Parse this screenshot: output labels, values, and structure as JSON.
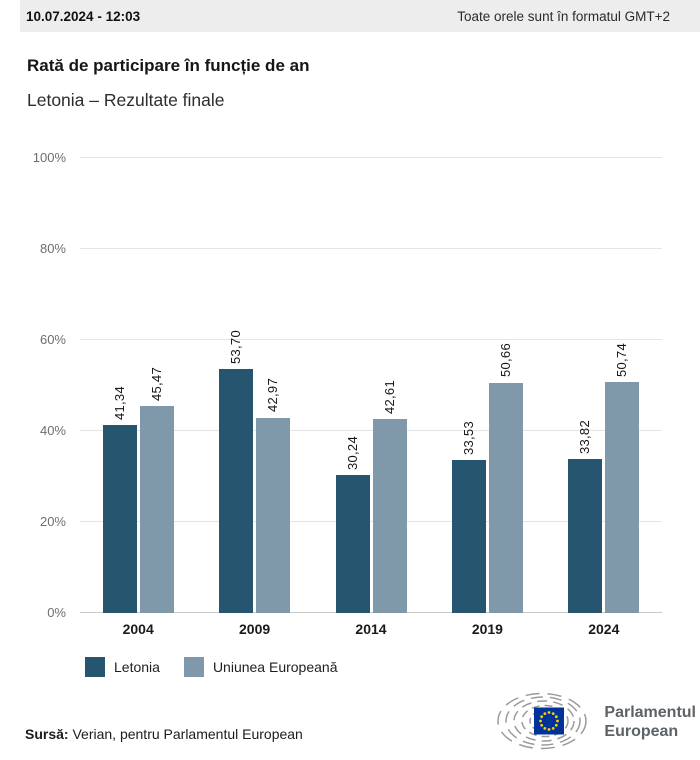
{
  "header": {
    "timestamp": "10.07.2024 - 12:03",
    "timezone_note": "Toate orele sunt în formatul GMT+2"
  },
  "title": "Rată de participare în funcție de an",
  "subtitle": "Letonia – Rezultate finale",
  "chart_data": {
    "type": "bar",
    "title": "Rată de participare în funcție de an",
    "subtitle": "Letonia – Rezultate finale",
    "categories": [
      "2004",
      "2009",
      "2014",
      "2019",
      "2024"
    ],
    "series": [
      {
        "name": "Letonia",
        "color": "#265570",
        "values": [
          41.34,
          53.7,
          30.24,
          33.53,
          33.82
        ],
        "labels": [
          "41,34",
          "53,70",
          "30,24",
          "33,53",
          "33,82"
        ]
      },
      {
        "name": "Uniunea Europeană",
        "color": "#7f99aa",
        "values": [
          45.47,
          42.97,
          42.61,
          50.66,
          50.74
        ],
        "labels": [
          "45,47",
          "42,97",
          "42,61",
          "50,66",
          "50,74"
        ]
      }
    ],
    "ylim": [
      0,
      100
    ],
    "ytick_step": 20,
    "ytick_labels": [
      "0%",
      "20%",
      "40%",
      "60%",
      "80%",
      "100%"
    ],
    "grid": true,
    "legend_position": "bottom",
    "value_label_rotation": -90
  },
  "footer": {
    "source_label": "Sursă:",
    "source_text": " Verian, pentru Parlamentul European"
  },
  "logo": {
    "line1": "Parlamentul",
    "line2": "European",
    "flag_blue": "#003399",
    "star_yellow": "#ffcc00",
    "arc_gray": "#9b9b9b"
  },
  "colors": {
    "bar_dark": "#265570",
    "bar_light": "#7f99aa",
    "header_bg": "#ededed",
    "gridline": "#e4e4e4"
  }
}
